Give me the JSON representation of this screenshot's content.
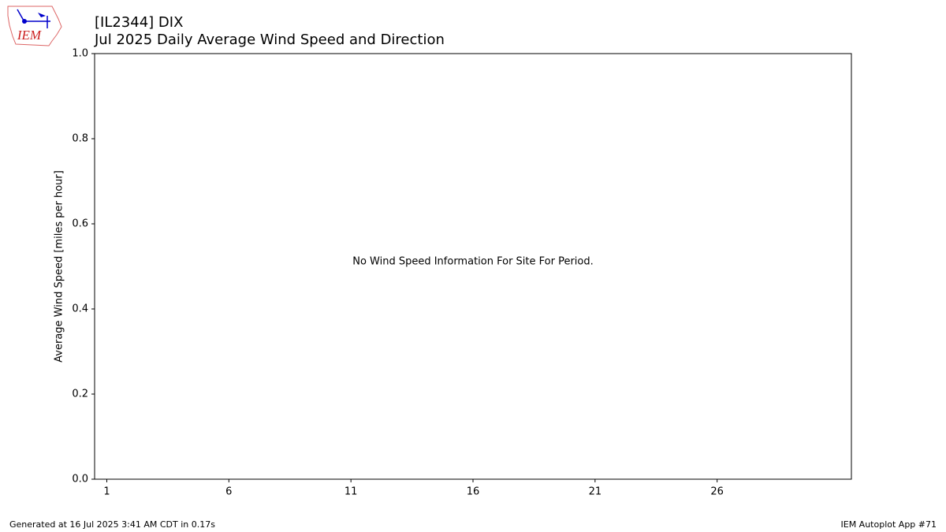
{
  "chart_data": {
    "type": "bar",
    "title": "[IL2344] DIX",
    "subtitle": "Jul 2025 Daily Average Wind Speed and Direction",
    "ylabel": "Average Wind Speed [miles per hour]",
    "annotation": "No Wind Speed Information For Site For Period.",
    "xlim": [
      0.5,
      31.5
    ],
    "xticks": [
      1,
      6,
      11,
      16,
      21,
      26
    ],
    "ylim": [
      0,
      1
    ],
    "yticks": [
      {
        "value": 0,
        "label": "0.0"
      },
      {
        "value": 0.2,
        "label": "0.2"
      },
      {
        "value": 0.4,
        "label": "0.4"
      },
      {
        "value": 0.6,
        "label": "0.6"
      },
      {
        "value": 0.8,
        "label": "0.8"
      },
      {
        "value": 1,
        "label": "1.0"
      }
    ],
    "grid": false
  },
  "logo_text": "IEM",
  "footer": {
    "left": "Generated at 16 Jul 2025 3:41 AM CDT in 0.17s",
    "right": "IEM Autoplot App #71"
  }
}
